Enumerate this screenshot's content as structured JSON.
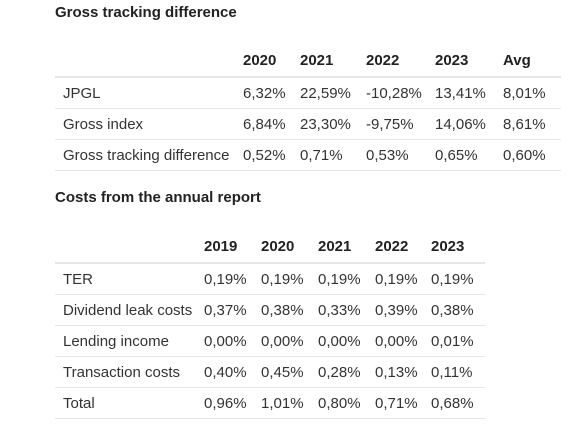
{
  "tracking": {
    "title": "Gross tracking difference",
    "headers": [
      "",
      "2020",
      "2021",
      "2022",
      "2023",
      "Avg"
    ],
    "rows": [
      [
        "JPGL",
        "6,32%",
        "22,59%",
        "-10,28%",
        "13,41%",
        "8,01%"
      ],
      [
        "Gross index",
        "6,84%",
        "23,30%",
        "-9,75%",
        "14,06%",
        "8,61%"
      ],
      [
        "Gross tracking difference",
        "0,52%",
        "0,71%",
        "0,53%",
        "0,65%",
        "0,60%"
      ]
    ]
  },
  "costs": {
    "title": "Costs from the annual report",
    "headers": [
      "",
      "2019",
      "2020",
      "2021",
      "2022",
      "2023"
    ],
    "rows": [
      [
        "TER",
        "0,19%",
        "0,19%",
        "0,19%",
        "0,19%",
        "0,19%"
      ],
      [
        "Dividend leak costs",
        "0,37%",
        "0,38%",
        "0,33%",
        "0,39%",
        "0,38%"
      ],
      [
        "Lending income",
        "0,00%",
        "0,00%",
        "0,00%",
        "0,00%",
        "0,01%"
      ],
      [
        "Transaction costs",
        "0,40%",
        "0,45%",
        "0,28%",
        "0,13%",
        "0,11%"
      ],
      [
        "Total",
        "0,96%",
        "1,01%",
        "0,80%",
        "0,71%",
        "0,68%"
      ]
    ]
  }
}
